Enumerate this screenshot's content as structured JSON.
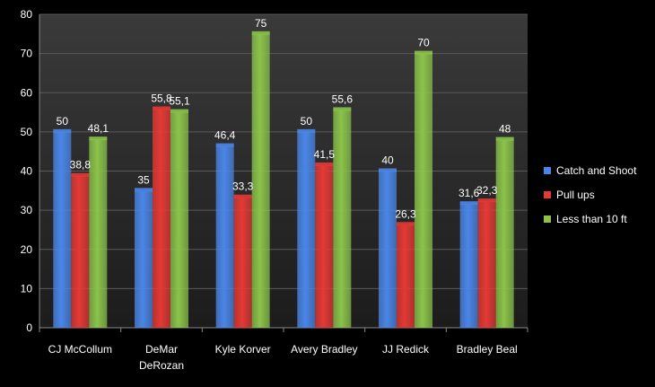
{
  "chart_data": {
    "type": "bar",
    "categories": [
      "CJ McCollum",
      "DeMar DeRozan",
      "Kyle Korver",
      "Avery Bradley",
      "JJ Redick",
      "Bradley Beal"
    ],
    "category_lines": [
      [
        "CJ McCollum"
      ],
      [
        "DeMar",
        "DeRozan"
      ],
      [
        "Kyle Korver"
      ],
      [
        "Avery Bradley"
      ],
      [
        "JJ Redick"
      ],
      [
        "Bradley Beal"
      ]
    ],
    "series": [
      {
        "name": "Catch and Shoot",
        "color": "#4a86e8",
        "values": [
          50,
          35,
          46.4,
          50,
          40,
          31.6
        ],
        "labels": [
          "50",
          "35",
          "46,4",
          "50",
          "40",
          "31,6"
        ]
      },
      {
        "name": "Pull ups",
        "color": "#e53935",
        "values": [
          38.8,
          55.8,
          33.3,
          41.5,
          26.3,
          32.3
        ],
        "labels": [
          "38,8",
          "55,8",
          "33,3",
          "41,5",
          "26,3",
          "32,3"
        ]
      },
      {
        "name": "Less than  10 ft",
        "color": "#8bc34a",
        "values": [
          48.1,
          55.1,
          75,
          55.6,
          70,
          48
        ],
        "labels": [
          "48,1",
          "55,1",
          "75",
          "55,6",
          "70",
          "48"
        ]
      }
    ],
    "ylim": [
      0,
      80
    ],
    "yticks": [
      0,
      10,
      20,
      30,
      40,
      50,
      60,
      70,
      80
    ],
    "grid": true,
    "legend_position": "right",
    "title": "",
    "xlabel": "",
    "ylabel": ""
  }
}
